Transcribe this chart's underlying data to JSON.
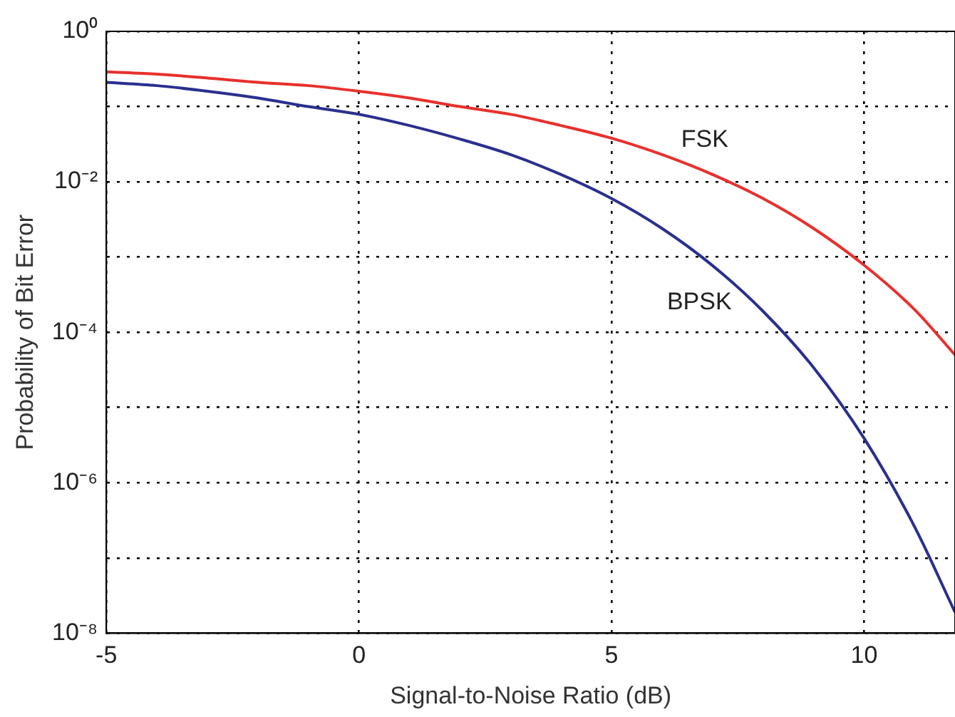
{
  "chart_data": {
    "type": "line",
    "xlabel": "Signal-to-Noise Ratio (dB)",
    "ylabel": "Probability of Bit Error",
    "log": "y",
    "grid": true,
    "line_style": "solid",
    "marker": "none",
    "xlim": [
      -5,
      11.8
    ],
    "xticks": [
      -5,
      0,
      5,
      10
    ],
    "ylim": [
      1e-08,
      1
    ],
    "yticks": [
      {
        "value": 1,
        "label": "10⁰"
      },
      {
        "value": 0.1,
        "label": null
      },
      {
        "value": 0.01,
        "label": "10⁻²"
      },
      {
        "value": 0.001,
        "label": null
      },
      {
        "value": 0.0001,
        "label": "10⁻⁴"
      },
      {
        "value": 1e-05,
        "label": null
      },
      {
        "value": 1e-06,
        "label": "10⁻⁶"
      },
      {
        "value": 1e-07,
        "label": null
      },
      {
        "value": 1e-08,
        "label": "10⁻⁸"
      }
    ],
    "x": [
      -5,
      -4,
      -3,
      -2,
      -1,
      0,
      1,
      2,
      3,
      4,
      5,
      6,
      7,
      8,
      9,
      10,
      11,
      11.8
    ],
    "series": [
      {
        "name": "FSK",
        "color": "#e8302c",
        "values": [
          0.29,
          0.27,
          0.24,
          0.21,
          0.19,
          0.16,
          0.13,
          0.1,
          0.079,
          0.056,
          0.038,
          0.023,
          0.0125,
          0.006,
          0.0024,
          0.00078,
          0.0002,
          5e-05
        ]
      },
      {
        "name": "BPSK",
        "color": "#2a2f8f",
        "values": [
          0.21,
          0.19,
          0.16,
          0.13,
          0.1,
          0.079,
          0.056,
          0.037,
          0.023,
          0.0125,
          0.006,
          0.0024,
          0.00077,
          0.00019,
          3.4e-05,
          3.9e-06,
          2.6e-07,
          1.9e-08
        ]
      }
    ]
  }
}
